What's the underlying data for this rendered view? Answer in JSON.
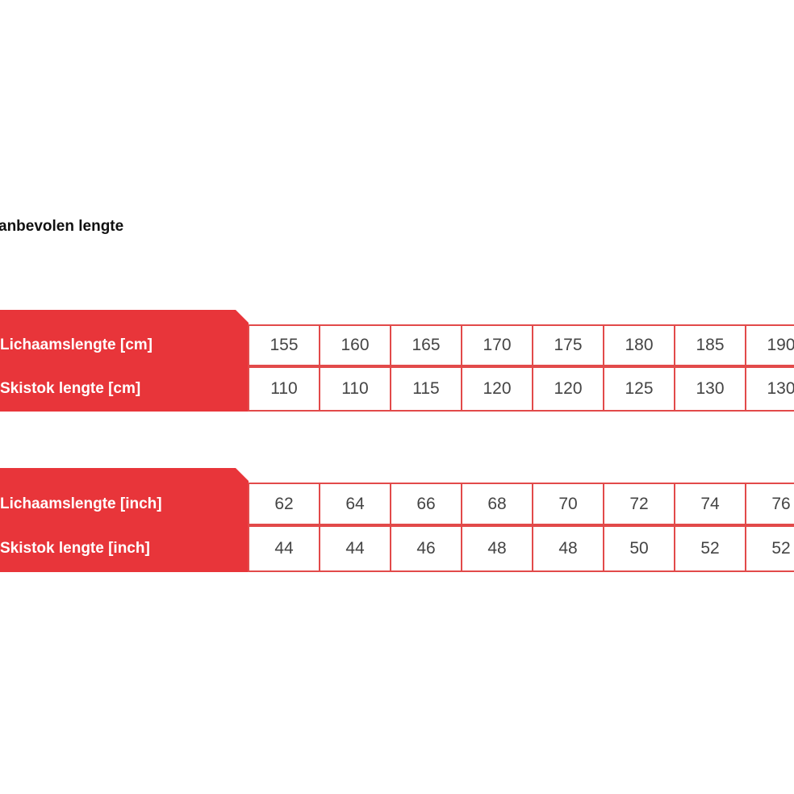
{
  "title": "anbevolen lengte",
  "accent_color": "#e8353a",
  "tables": [
    {
      "rows": [
        {
          "label": "Lichaamslengte [cm]",
          "values": [
            "155",
            "160",
            "165",
            "170",
            "175",
            "180",
            "185",
            "190"
          ]
        },
        {
          "label": "Skistok lengte [cm]",
          "values": [
            "110",
            "110",
            "115",
            "120",
            "120",
            "125",
            "130",
            "130"
          ]
        }
      ]
    },
    {
      "rows": [
        {
          "label": "Lichaamslengte [inch]",
          "values": [
            "62",
            "64",
            "66",
            "68",
            "70",
            "72",
            "74",
            "76"
          ]
        },
        {
          "label": "Skistok lengte [inch]",
          "values": [
            "44",
            "44",
            "46",
            "48",
            "48",
            "50",
            "52",
            "52"
          ]
        }
      ]
    }
  ]
}
